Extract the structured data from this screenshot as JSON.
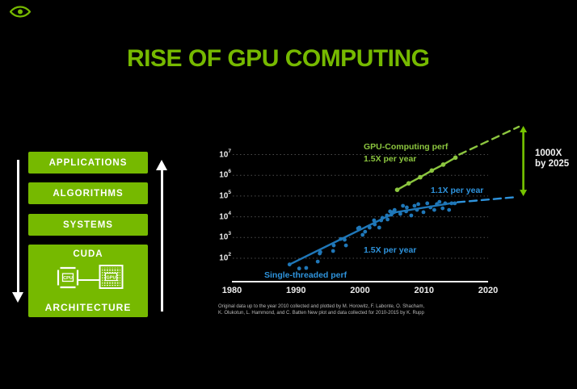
{
  "slide": {
    "title": "RISE OF GPU COMPUTING",
    "brand_color": "#76B900",
    "background": "#000000"
  },
  "sidebar": {
    "left_arrow_direction": "down",
    "right_arrow_direction": "up",
    "boxes": [
      {
        "label": "APPLICATIONS"
      },
      {
        "label": "ALGORITHMS"
      },
      {
        "label": "SYSTEMS"
      },
      {
        "label": "CUDA",
        "sublabel": "ARCHITECTURE",
        "cpu_label": "CPU",
        "gpu_label": "GPU"
      }
    ]
  },
  "chart_data": {
    "type": "scatter",
    "title": "",
    "xlabel": "",
    "ylabel": "",
    "grid": "dotted horizontal per decade",
    "x_axis": {
      "ticks": [
        1980,
        1990,
        2000,
        2010,
        2020
      ],
      "range": [
        1980,
        2026
      ]
    },
    "y_axis": {
      "scale": "log",
      "tick_exponents": [
        2,
        3,
        4,
        5,
        6,
        7
      ],
      "range_exponents": [
        2,
        8.4
      ]
    },
    "colors": {
      "blue": "#1F77B8",
      "blue_text": "#2E93DC",
      "green": "#8CC63F",
      "arrow_green": "#76C400"
    },
    "series": [
      {
        "name": "Single-threaded perf (measured)",
        "type": "scatter",
        "color": "#1F77B8",
        "points": [
          [
            1989.0,
            50
          ],
          [
            1990.5,
            32
          ],
          [
            1991.6,
            34
          ],
          [
            1993.4,
            69
          ],
          [
            1993.7,
            170
          ],
          [
            1993.8,
            200
          ],
          [
            1995.8,
            224
          ],
          [
            1995.9,
            417
          ],
          [
            1997.0,
            850
          ],
          [
            1997.6,
            776
          ],
          [
            1997.8,
            417
          ],
          [
            1999.7,
            2750
          ],
          [
            1999.9,
            3020
          ],
          [
            2000.4,
            1350
          ],
          [
            2000.8,
            1900
          ],
          [
            2001.5,
            3020
          ],
          [
            2002.2,
            6760
          ],
          [
            2002.3,
            4270
          ],
          [
            2003.0,
            3020
          ],
          [
            2003.3,
            6760
          ],
          [
            2003.5,
            8910
          ],
          [
            2004.2,
            11500
          ],
          [
            2004.3,
            7410
          ],
          [
            2004.7,
            18200
          ],
          [
            2004.9,
            12600
          ],
          [
            2005.1,
            16600
          ],
          [
            2005.4,
            21400
          ],
          [
            2006.3,
            13800
          ],
          [
            2006.7,
            33900
          ],
          [
            2007.2,
            18200
          ],
          [
            2007.3,
            28200
          ],
          [
            2008.0,
            11500
          ],
          [
            2008.5,
            33900
          ],
          [
            2008.9,
            21400
          ],
          [
            2009.1,
            40700
          ],
          [
            2009.9,
            16600
          ],
          [
            2010.5,
            44700
          ],
          [
            2011.0,
            28200
          ],
          [
            2011.6,
            21400
          ],
          [
            2012.0,
            40700
          ],
          [
            2012.4,
            52500
          ],
          [
            2012.9,
            25700
          ],
          [
            2013.3,
            44700
          ],
          [
            2013.9,
            21400
          ],
          [
            2014.3,
            44700
          ],
          [
            2014.8,
            44700
          ]
        ]
      },
      {
        "name": "Single-threaded trend 1.5X per year",
        "type": "line",
        "color": "#1F77B8",
        "points": [
          [
            1989.2,
            54
          ],
          [
            2005.6,
            16600
          ],
          [
            2014.8,
            48000
          ]
        ]
      },
      {
        "name": "Single-threaded projection 1.1X per year",
        "type": "dashed-line",
        "color": "#2E93DC",
        "points": [
          [
            2015.2,
            50000
          ],
          [
            2024.4,
            89000
          ]
        ]
      },
      {
        "name": "GPU-Computing perf 1.5X per year",
        "type": "line-markers",
        "color": "#8CC63F",
        "points": [
          [
            2005.8,
            200000
          ],
          [
            2007.6,
            410000
          ],
          [
            2009.4,
            810000
          ],
          [
            2011.2,
            1700000
          ],
          [
            2013.0,
            3300000
          ],
          [
            2014.9,
            7100000
          ]
        ]
      },
      {
        "name": "GPU-Computing projection",
        "type": "dashed-line",
        "color": "#8CC63F",
        "points": [
          [
            2015.5,
            10000000
          ],
          [
            2024.8,
            220000000
          ]
        ]
      }
    ],
    "gap_arrow": {
      "year": 2025.5,
      "value_top": 240000000,
      "value_bottom": 98000
    },
    "labels": {
      "gpu_line1": "GPU-Computing perf",
      "gpu_line2": "1.5X per year",
      "single_projection": "1.1X per year",
      "single_trend": "1.5X per year",
      "single_name": "Single-threaded perf",
      "gap_line1": "1000X",
      "gap_line2": "by 2025"
    },
    "footnote_line1": "Original data up to the year 2010 collected and plotted by M. Horowitz, F. Labonte, O. Shacham,",
    "footnote_line2": "K. Olukotun, L. Hammond, and C. Batten New plot and data collected for 2010-2015 by K. Rupp"
  }
}
